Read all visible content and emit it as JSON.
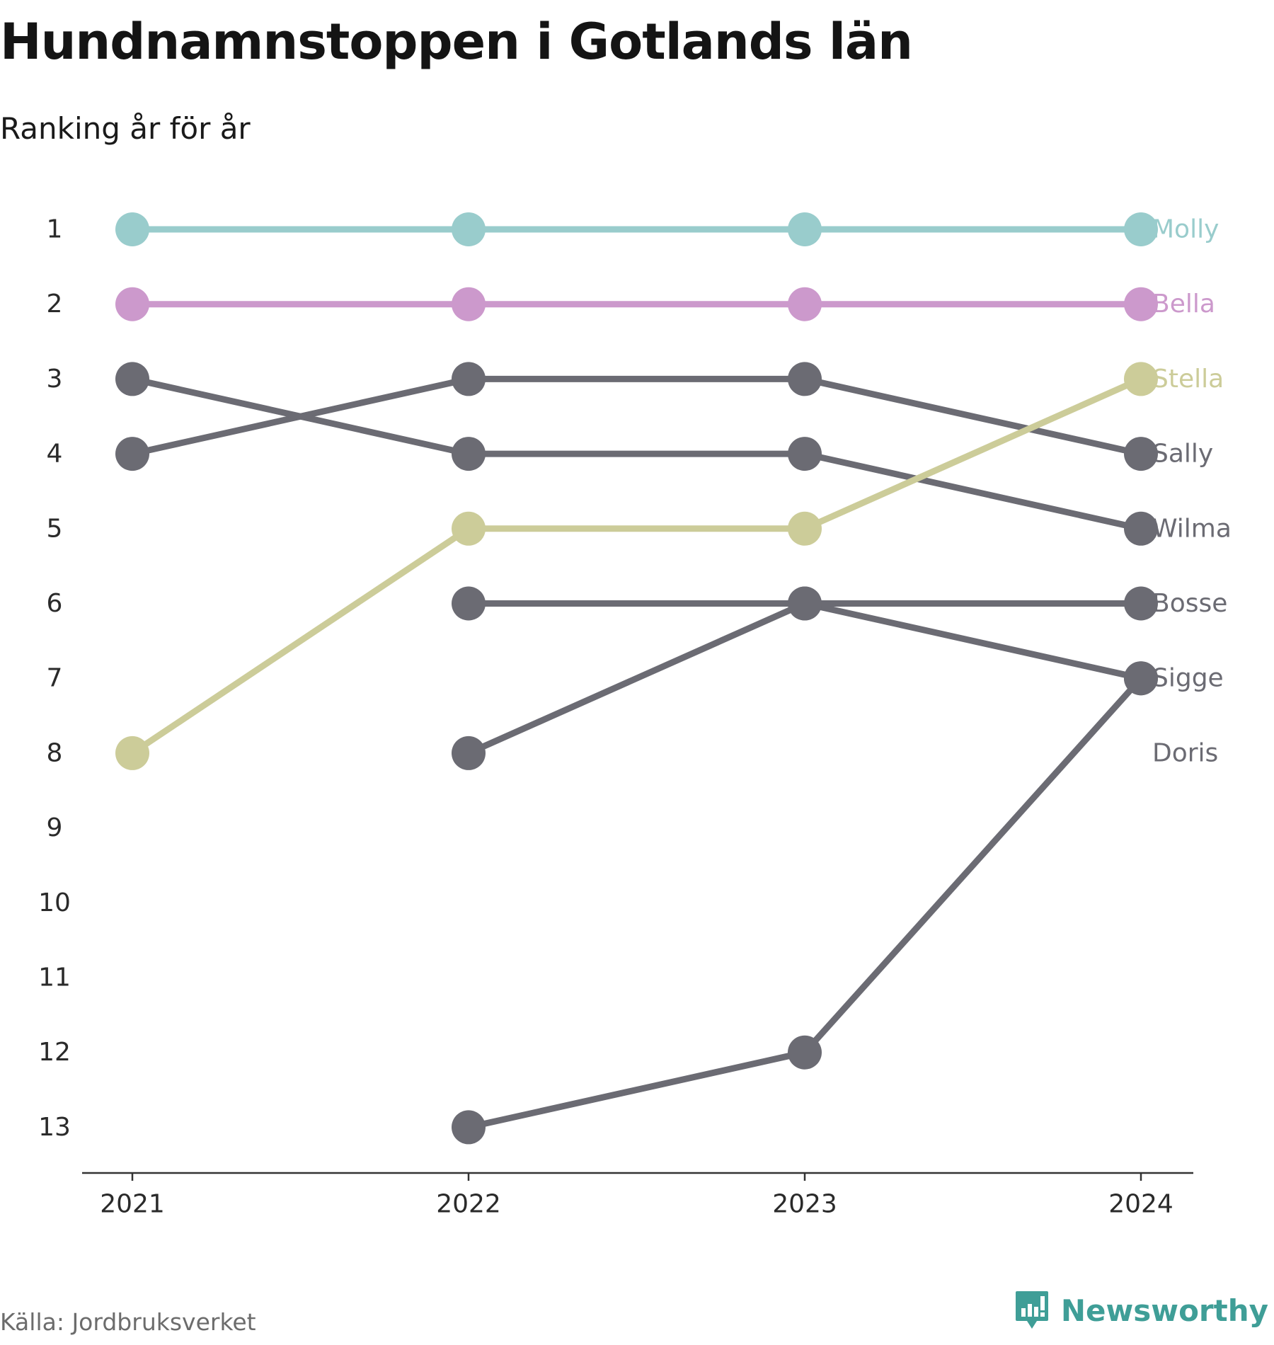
{
  "title": "Hundnamnstoppen i Gotlands län",
  "subtitle": "Ranking år för år",
  "source": "Källa: Jordbruksverket",
  "brand": {
    "name": "Newsworthy",
    "icon": "newsworthy-logo-icon",
    "color": "#3f9e97"
  },
  "chart_data": {
    "type": "line",
    "subtype": "bump",
    "title": "Hundnamnstoppen i Gotlands län",
    "subtitle": "Ranking år för år",
    "x": [
      "2021",
      "2022",
      "2023",
      "2024"
    ],
    "y_ticks": [
      "1",
      "2",
      "3",
      "4",
      "5",
      "6",
      "7",
      "8",
      "9",
      "10",
      "11",
      "12",
      "13"
    ],
    "ylim": [
      1,
      13
    ],
    "y_inverted": true,
    "grid": false,
    "legend": "none",
    "series": [
      {
        "name": "Molly",
        "color": "#99cccc",
        "values": [
          1,
          1,
          1,
          1
        ]
      },
      {
        "name": "Bella",
        "color": "#cc99cc",
        "values": [
          2,
          2,
          2,
          2
        ]
      },
      {
        "name": "Stella",
        "color": "#cccc99",
        "values": [
          8,
          5,
          5,
          3
        ]
      },
      {
        "name": "Sally",
        "color": "#6b6b73",
        "values": [
          4,
          3,
          3,
          4
        ]
      },
      {
        "name": "Wilma",
        "color": "#6b6b73",
        "values": [
          3,
          4,
          4,
          5
        ]
      },
      {
        "name": "Bosse",
        "color": "#6b6b73",
        "values": [
          null,
          6,
          6,
          6
        ]
      },
      {
        "name": "Sigge",
        "color": "#6b6b73",
        "values": [
          null,
          8,
          6,
          7
        ]
      },
      {
        "name": "Doris",
        "color": "#6b6b73",
        "values": [
          null,
          13,
          12,
          7
        ]
      }
    ]
  }
}
